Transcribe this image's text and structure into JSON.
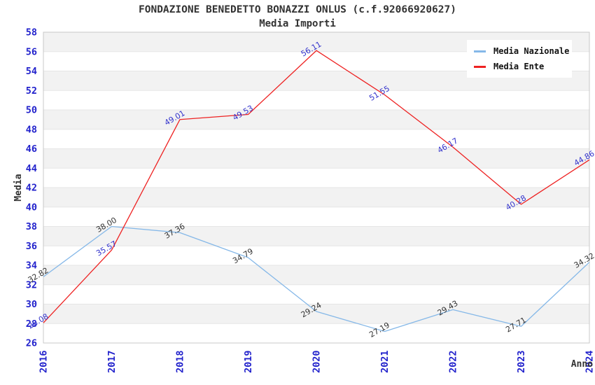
{
  "header": {
    "title": "FONDAZIONE BENEDETTO BONAZZI ONLUS (c.f.92066920627)",
    "subtitle": "Media Importi"
  },
  "legend": {
    "items": [
      {
        "id": "nazionale",
        "label": "Media Nazionale",
        "color": "#85b8e8"
      },
      {
        "id": "ente",
        "label": "Media Ente",
        "color": "#ee2222"
      }
    ]
  },
  "axes": {
    "y_title": "Media",
    "x_title": "Anno",
    "y_ticks": [
      26,
      28,
      30,
      32,
      34,
      36,
      38,
      40,
      42,
      44,
      46,
      48,
      50,
      52,
      54,
      56,
      58
    ],
    "x_ticks": [
      "2016",
      "2017",
      "2018",
      "2019",
      "2020",
      "2021",
      "2022",
      "2023",
      "2024"
    ]
  },
  "chart_data": {
    "type": "line",
    "title": "FONDAZIONE BENEDETTO BONAZZI ONLUS (c.f.92066920627)",
    "subtitle": "Media Importi",
    "xlabel": "Anno",
    "ylabel": "Media",
    "x": [
      2016,
      2017,
      2018,
      2019,
      2020,
      2021,
      2022,
      2023,
      2024
    ],
    "ylim": [
      26,
      58
    ],
    "ytick_step": 2,
    "grid": "alternating horizontal bands",
    "legend_position": "top-right inside plot",
    "series": [
      {
        "name": "Media Nazionale",
        "color": "#85b8e8",
        "label_color": "#333333",
        "values": [
          32.82,
          38.0,
          37.36,
          34.79,
          29.24,
          27.19,
          29.43,
          27.71,
          34.32
        ]
      },
      {
        "name": "Media Ente",
        "color": "#ee2222",
        "label_color": "#3333cc",
        "values": [
          28.08,
          35.57,
          49.01,
          49.53,
          56.11,
          51.55,
          46.17,
          40.28,
          44.86
        ]
      }
    ],
    "colors": {
      "tick_label": "#2222cc",
      "band": "#f2f2f2",
      "band_line": "#e6e6e6",
      "plot_border": "#c8c8c8",
      "axis_title": "#333333"
    }
  }
}
